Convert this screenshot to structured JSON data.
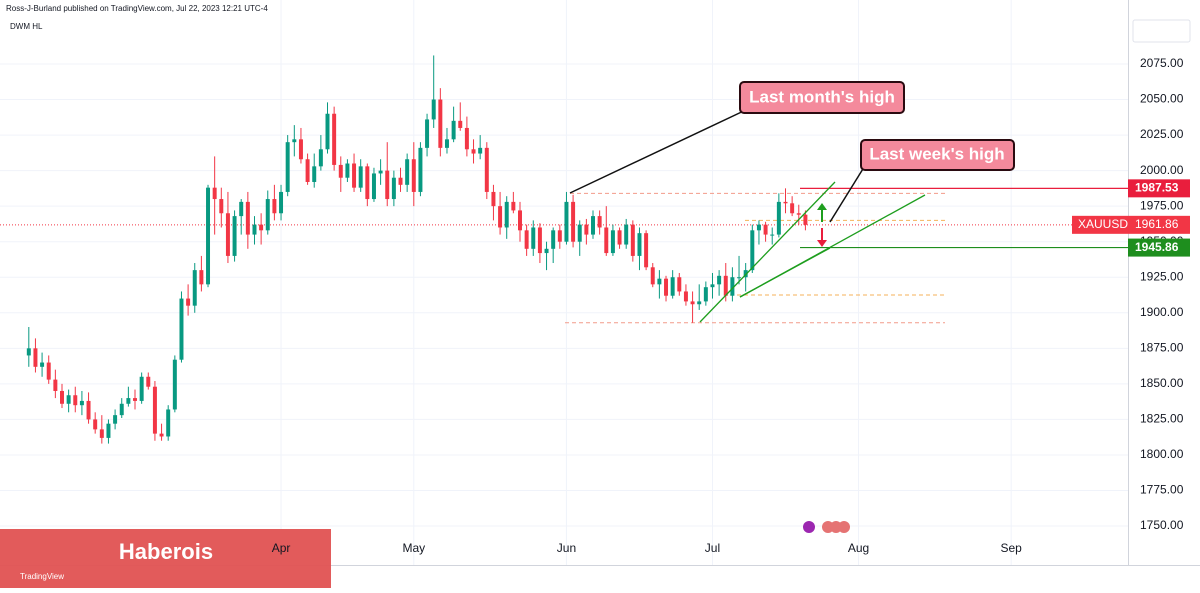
{
  "chart_data": {
    "type": "candlestick",
    "header": "Ross-J-Burland published on TradingView.com, Jul 22, 2023 12:21 UTC-4",
    "indicator": "DWM HL",
    "symbol": "XAUUSD",
    "annotations": [
      "Last month's high",
      "Last week's high"
    ],
    "watermark": "Haberois",
    "footer": "TradingView",
    "up_color": "#089981",
    "down_color": "#f23645",
    "xlim": [
      -4.34,
      165.6
    ],
    "xticks": [
      {
        "value": 38,
        "label": "Apr"
      },
      {
        "value": 58,
        "label": "May"
      },
      {
        "value": 81,
        "label": "Jun"
      },
      {
        "value": 103,
        "label": "Jul"
      },
      {
        "value": 125,
        "label": "Aug"
      },
      {
        "value": 148,
        "label": "Sep"
      }
    ],
    "ylim": [
      1722.6,
      2120
    ],
    "yticks": [
      {
        "value": 2075,
        "label": "2075.00"
      },
      {
        "value": 2050,
        "label": "2050.00"
      },
      {
        "value": 2025,
        "label": "2025.00"
      },
      {
        "value": 2000,
        "label": "2000.00"
      },
      {
        "value": 1975,
        "label": "1975.00"
      },
      {
        "value": 1950,
        "label": "1950.00"
      },
      {
        "value": 1925,
        "label": "1925.00"
      },
      {
        "value": 1900,
        "label": "1900.00"
      },
      {
        "value": 1875,
        "label": "1875.00"
      },
      {
        "value": 1850,
        "label": "1850.00"
      },
      {
        "value": 1825,
        "label": "1825.00"
      },
      {
        "value": 1800,
        "label": "1800.00"
      },
      {
        "value": 1775,
        "label": "1775.00"
      },
      {
        "value": 1750,
        "label": "1750.00"
      }
    ],
    "price_lines": [
      {
        "value": 1987.53,
        "color": "#e91e3d"
      },
      {
        "value": 1945.86,
        "color": "#1e8e1e"
      }
    ],
    "last_price": 1961.86,
    "dwm_levels": [
      1984,
      1965,
      1912.5,
      1893
    ],
    "ohlc": [
      [
        1870,
        1890,
        1862,
        1875
      ],
      [
        1875,
        1882,
        1858,
        1862
      ],
      [
        1862,
        1872,
        1855,
        1865
      ],
      [
        1865,
        1870,
        1850,
        1853
      ],
      [
        1853,
        1860,
        1840,
        1845
      ],
      [
        1845,
        1850,
        1833,
        1836
      ],
      [
        1836,
        1846,
        1830,
        1842
      ],
      [
        1842,
        1848,
        1830,
        1835
      ],
      [
        1835,
        1845,
        1828,
        1838
      ],
      [
        1838,
        1844,
        1822,
        1825
      ],
      [
        1825,
        1830,
        1815,
        1818
      ],
      [
        1818,
        1828,
        1808,
        1812
      ],
      [
        1812,
        1825,
        1808,
        1822
      ],
      [
        1822,
        1832,
        1818,
        1828
      ],
      [
        1828,
        1840,
        1826,
        1836
      ],
      [
        1836,
        1848,
        1834,
        1840
      ],
      [
        1840,
        1846,
        1832,
        1838
      ],
      [
        1838,
        1858,
        1836,
        1855
      ],
      [
        1855,
        1858,
        1846,
        1848
      ],
      [
        1848,
        1852,
        1810,
        1815
      ],
      [
        1815,
        1822,
        1810,
        1813
      ],
      [
        1813,
        1835,
        1810,
        1832
      ],
      [
        1832,
        1870,
        1830,
        1867
      ],
      [
        1867,
        1915,
        1865,
        1910
      ],
      [
        1910,
        1920,
        1898,
        1905
      ],
      [
        1905,
        1935,
        1900,
        1930
      ],
      [
        1930,
        1940,
        1915,
        1920
      ],
      [
        1920,
        1990,
        1918,
        1988
      ],
      [
        1988,
        2010,
        1955,
        1980
      ],
      [
        1980,
        1988,
        1960,
        1970
      ],
      [
        1970,
        1985,
        1935,
        1940
      ],
      [
        1940,
        1972,
        1936,
        1968
      ],
      [
        1968,
        1980,
        1955,
        1978
      ],
      [
        1978,
        1985,
        1945,
        1955
      ],
      [
        1955,
        1968,
        1948,
        1962
      ],
      [
        1962,
        1970,
        1948,
        1958
      ],
      [
        1958,
        1986,
        1955,
        1980
      ],
      [
        1980,
        1990,
        1965,
        1970
      ],
      [
        1970,
        1990,
        1965,
        1985
      ],
      [
        1985,
        2025,
        1982,
        2020
      ],
      [
        2020,
        2032,
        2010,
        2022
      ],
      [
        2022,
        2030,
        2005,
        2008
      ],
      [
        2008,
        2012,
        1990,
        1992
      ],
      [
        1992,
        2012,
        1988,
        2003
      ],
      [
        2003,
        2025,
        2000,
        2015
      ],
      [
        2015,
        2048,
        2012,
        2040
      ],
      [
        2040,
        2045,
        2000,
        2004
      ],
      [
        2004,
        2010,
        1985,
        1995
      ],
      [
        1995,
        2008,
        1992,
        2005
      ],
      [
        2005,
        2012,
        1985,
        1988
      ],
      [
        1988,
        2008,
        1985,
        2003
      ],
      [
        2003,
        2005,
        1975,
        1980
      ],
      [
        1980,
        2002,
        1978,
        1998
      ],
      [
        1998,
        2008,
        1990,
        2000
      ],
      [
        2000,
        2020,
        1975,
        1980
      ],
      [
        1980,
        2000,
        1975,
        1995
      ],
      [
        1995,
        2002,
        1985,
        1990
      ],
      [
        1990,
        2012,
        1985,
        2008
      ],
      [
        2008,
        2020,
        1975,
        1985
      ],
      [
        1985,
        2020,
        1982,
        2016
      ],
      [
        2016,
        2040,
        2010,
        2036
      ],
      [
        2036,
        2081,
        2030,
        2050
      ],
      [
        2050,
        2058,
        2010,
        2016
      ],
      [
        2016,
        2030,
        2012,
        2022
      ],
      [
        2022,
        2045,
        2020,
        2035
      ],
      [
        2035,
        2048,
        2028,
        2030
      ],
      [
        2030,
        2038,
        2010,
        2015
      ],
      [
        2015,
        2022,
        2005,
        2012
      ],
      [
        2012,
        2025,
        2008,
        2016
      ],
      [
        2016,
        2020,
        1980,
        1985
      ],
      [
        1985,
        1990,
        1965,
        1975
      ],
      [
        1975,
        1985,
        1955,
        1960
      ],
      [
        1960,
        1982,
        1952,
        1978
      ],
      [
        1978,
        1985,
        1970,
        1972
      ],
      [
        1972,
        1978,
        1950,
        1958
      ],
      [
        1958,
        1962,
        1940,
        1945
      ],
      [
        1945,
        1965,
        1940,
        1960
      ],
      [
        1960,
        1963,
        1935,
        1942
      ],
      [
        1942,
        1950,
        1930,
        1945
      ],
      [
        1945,
        1960,
        1935,
        1958
      ],
      [
        1958,
        1962,
        1945,
        1950
      ],
      [
        1950,
        1985,
        1948,
        1978
      ],
      [
        1978,
        1983,
        1946,
        1950
      ],
      [
        1950,
        1965,
        1940,
        1962
      ],
      [
        1962,
        1966,
        1948,
        1955
      ],
      [
        1955,
        1972,
        1952,
        1968
      ],
      [
        1968,
        1972,
        1955,
        1960
      ],
      [
        1960,
        1975,
        1940,
        1942
      ],
      [
        1942,
        1962,
        1940,
        1958
      ],
      [
        1958,
        1960,
        1945,
        1948
      ],
      [
        1948,
        1966,
        1945,
        1962
      ],
      [
        1962,
        1965,
        1936,
        1940
      ],
      [
        1940,
        1960,
        1930,
        1956
      ],
      [
        1956,
        1958,
        1930,
        1932
      ],
      [
        1932,
        1935,
        1918,
        1920
      ],
      [
        1920,
        1930,
        1910,
        1924
      ],
      [
        1924,
        1926,
        1908,
        1912
      ],
      [
        1912,
        1930,
        1910,
        1925
      ],
      [
        1925,
        1928,
        1912,
        1915
      ],
      [
        1915,
        1920,
        1905,
        1908
      ],
      [
        1908,
        1915,
        1893,
        1906
      ],
      [
        1906,
        1920,
        1902,
        1908
      ],
      [
        1908,
        1922,
        1905,
        1918
      ],
      [
        1918,
        1928,
        1910,
        1920
      ],
      [
        1920,
        1930,
        1912,
        1926
      ],
      [
        1926,
        1935,
        1908,
        1912
      ],
      [
        1912,
        1932,
        1908,
        1925
      ],
      [
        1925,
        1940,
        1920,
        1925
      ],
      [
        1925,
        1935,
        1915,
        1930
      ],
      [
        1930,
        1962,
        1928,
        1958
      ],
      [
        1958,
        1965,
        1948,
        1962
      ],
      [
        1962,
        1964,
        1950,
        1955
      ],
      [
        1955,
        1960,
        1948,
        1955
      ],
      [
        1955,
        1984,
        1953,
        1978
      ],
      [
        1978,
        1987.53,
        1970,
        1977
      ],
      [
        1977,
        1982,
        1968,
        1970
      ],
      [
        1970,
        1976,
        1962,
        1969
      ],
      [
        1969,
        1972,
        1958,
        1961.86
      ]
    ]
  }
}
